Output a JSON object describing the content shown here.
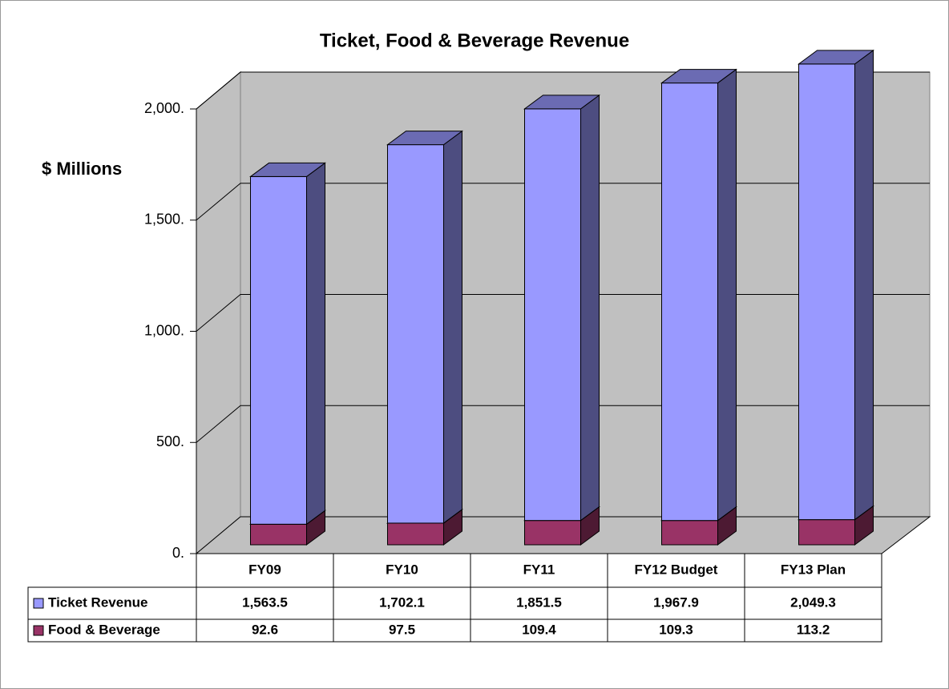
{
  "chart_data": {
    "type": "bar3d-stacked",
    "title": "Ticket, Food & Beverage Revenue",
    "y_label": "$ Millions",
    "categories": [
      "FY09",
      "FY10",
      "FY11",
      "FY12 Budget",
      "FY13 Plan"
    ],
    "series": [
      {
        "name": "Ticket Revenue",
        "color": "#9999ff",
        "values": [
          1563.5,
          1702.1,
          1851.5,
          1967.9,
          2049.3
        ],
        "value_labels": [
          "1,563.5",
          "1,702.1",
          "1,851.5",
          "1,967.9",
          "2,049.3"
        ]
      },
      {
        "name": "Food & Beverage",
        "color": "#993366",
        "values": [
          92.6,
          97.5,
          109.4,
          109.3,
          113.2
        ]
      }
    ],
    "ylim": [
      0,
      2000
    ],
    "yticks": [
      {
        "value": 0,
        "label": "0."
      },
      {
        "value": 500,
        "label": "500."
      },
      {
        "value": 1000,
        "label": "1,000."
      },
      {
        "value": 1500,
        "label": "1,500."
      },
      {
        "value": 2000,
        "label": "2,000."
      }
    ],
    "grid": true
  }
}
